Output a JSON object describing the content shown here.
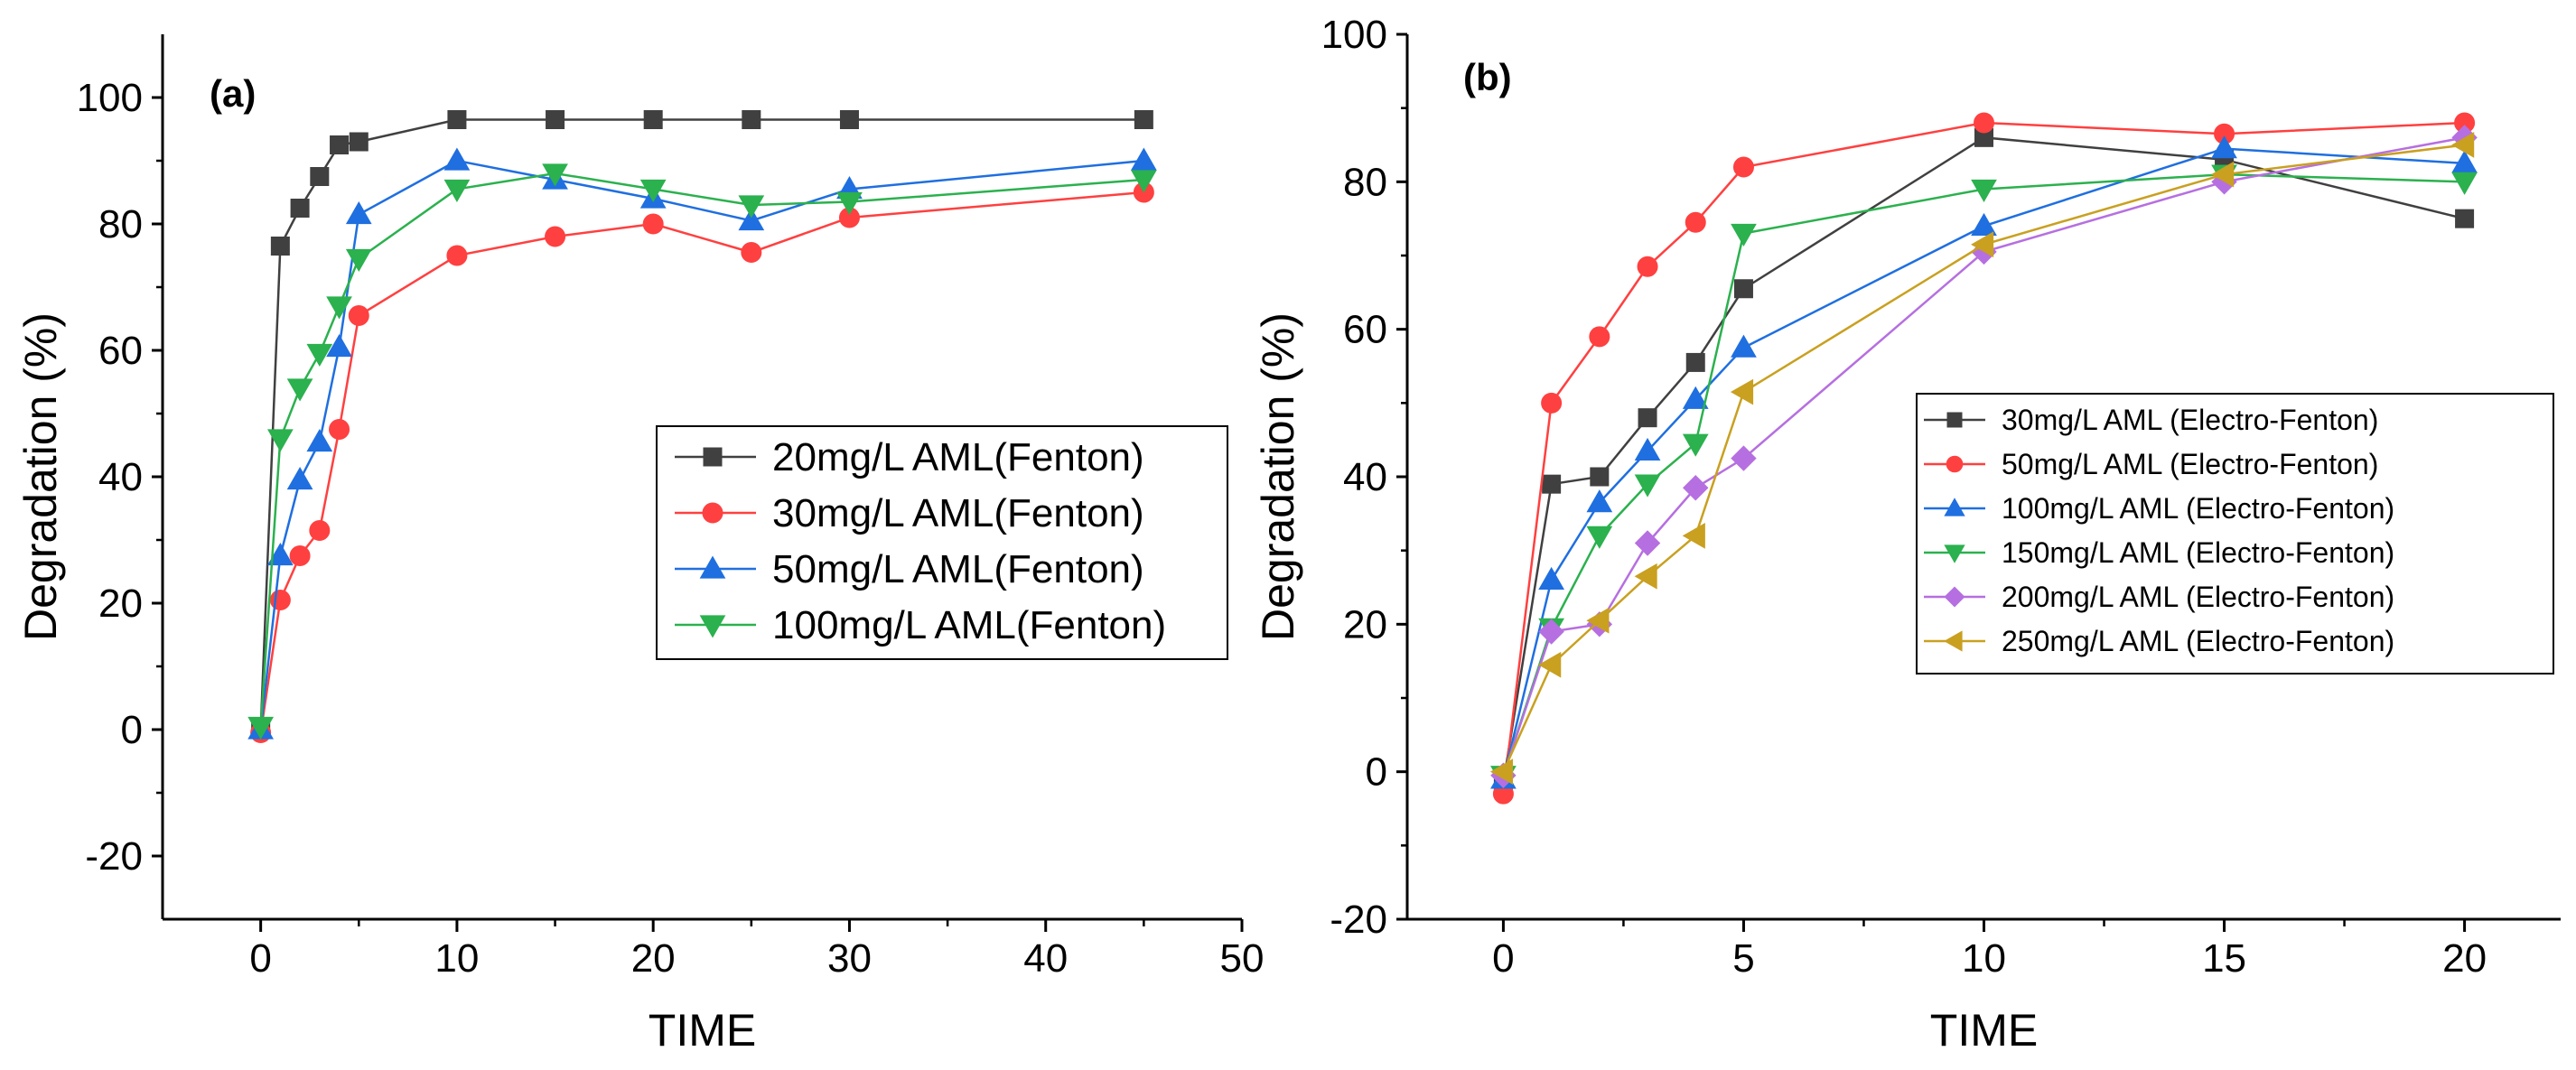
{
  "chart_data": [
    {
      "type": "line",
      "panel_label": "(a)",
      "xlabel": "TIME",
      "ylabel": "Degradation (%)",
      "xlim": [
        -5,
        50
      ],
      "ylim": [
        -30,
        110
      ],
      "xticks": [
        0,
        10,
        20,
        30,
        40,
        50
      ],
      "yticks": [
        -20,
        0,
        20,
        40,
        60,
        80,
        100
      ],
      "legend_position": "center-right",
      "series": [
        {
          "name": "20mg/L AML(Fenton)",
          "color": "#404040",
          "marker": "square",
          "x": [
            0,
            1,
            2,
            3,
            4,
            5,
            10,
            15,
            20,
            25,
            30,
            45
          ],
          "y": [
            0,
            76.5,
            82.5,
            87.5,
            92.5,
            93,
            96.5,
            96.5,
            96.5,
            96.5,
            96.5,
            96.5
          ]
        },
        {
          "name": "30mg/L AML(Fenton)",
          "color": "#ff4040",
          "marker": "circle",
          "x": [
            0,
            1,
            2,
            3,
            4,
            5,
            10,
            15,
            20,
            25,
            30,
            45
          ],
          "y": [
            -0.5,
            20.5,
            27.5,
            31.5,
            47.5,
            65.5,
            75,
            78,
            80,
            75.5,
            81,
            85
          ]
        },
        {
          "name": "50mg/L AML(Fenton)",
          "color": "#1f6fe0",
          "marker": "triangle-up",
          "x": [
            0,
            1,
            2,
            3,
            4,
            5,
            10,
            15,
            20,
            25,
            30,
            45
          ],
          "y": [
            0,
            27.5,
            39.5,
            45.5,
            60.5,
            81.5,
            90,
            87,
            84,
            80.5,
            85.5,
            90
          ]
        },
        {
          "name": "100mg/L AML(Fenton)",
          "color": "#2bb14e",
          "marker": "triangle-down",
          "x": [
            0,
            1,
            2,
            3,
            4,
            5,
            10,
            15,
            20,
            25,
            30,
            45
          ],
          "y": [
            0.5,
            46,
            54,
            59.5,
            67,
            74.5,
            85.5,
            88,
            85.5,
            83,
            83.5,
            87
          ]
        }
      ]
    },
    {
      "type": "line",
      "panel_label": "(b)",
      "xlabel": "TIME",
      "ylabel": "Degradation (%)",
      "xlim": [
        -2,
        22
      ],
      "ylim": [
        -20,
        100
      ],
      "xticks": [
        0,
        5,
        10,
        15,
        20
      ],
      "yticks": [
        -20,
        0,
        20,
        40,
        60,
        80,
        100
      ],
      "legend_position": "center-right",
      "series": [
        {
          "name": "30mg/L AML (Electro-Fenton)",
          "color": "#404040",
          "marker": "square",
          "x": [
            0,
            1,
            2,
            3,
            4,
            5,
            10,
            15,
            20
          ],
          "y": [
            -1.5,
            39,
            40,
            48,
            55.5,
            65.5,
            86,
            83,
            75
          ]
        },
        {
          "name": "50mg/L AML (Electro-Fenton)",
          "color": "#ff4040",
          "marker": "circle",
          "x": [
            0,
            1,
            2,
            3,
            4,
            5,
            10,
            15,
            20
          ],
          "y": [
            -3,
            50,
            59,
            68.5,
            74.5,
            82,
            88,
            86.5,
            88
          ]
        },
        {
          "name": "100mg/L AML (Electro-Fenton)",
          "color": "#1f6fe0",
          "marker": "triangle-up",
          "x": [
            0,
            1,
            2,
            3,
            4,
            5,
            10,
            15,
            20
          ],
          "y": [
            -1,
            26,
            36.5,
            43.5,
            50.5,
            57.5,
            74,
            84.5,
            82.5
          ]
        },
        {
          "name": "150mg/L AML (Electro-Fenton)",
          "color": "#2bb14e",
          "marker": "triangle-down",
          "x": [
            0,
            1,
            2,
            3,
            4,
            5,
            10,
            15,
            20
          ],
          "y": [
            -0.5,
            19.5,
            32,
            39,
            44.5,
            73,
            79,
            81,
            80
          ]
        },
        {
          "name": "200mg/L AML (Electro-Fenton)",
          "color": "#b66fe0",
          "marker": "diamond",
          "x": [
            0,
            1,
            2,
            3,
            4,
            5,
            10,
            15,
            20
          ],
          "y": [
            -0.5,
            19,
            20,
            31,
            38.5,
            42.5,
            70.5,
            80,
            86
          ]
        },
        {
          "name": "250mg/L AML (Electro-Fenton)",
          "color": "#c9a020",
          "marker": "triangle-left",
          "x": [
            0,
            1,
            2,
            3,
            4,
            5,
            10,
            15,
            20
          ],
          "y": [
            0,
            14.5,
            20.5,
            26.5,
            32,
            51.5,
            71.5,
            81,
            85
          ]
        }
      ]
    }
  ]
}
